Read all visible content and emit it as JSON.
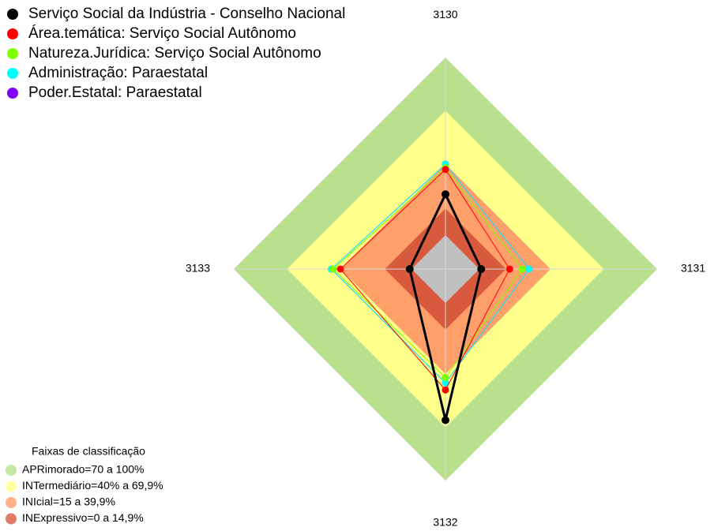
{
  "chart_data": {
    "type": "radar",
    "categories": [
      "3130",
      "3131",
      "3132",
      "3133"
    ],
    "ylim": [
      0,
      100
    ],
    "series": [
      {
        "name": "Serviço Social da Indústria - Conselho Nacional",
        "color": "#000000",
        "values": [
          23,
          1,
          66,
          1
        ]
      },
      {
        "name": "Área.temática: Serviço Social Autônomo",
        "color": "#ff0000",
        "values": [
          37,
          17,
          49,
          40
        ]
      },
      {
        "name": "Natureza.Jurídica: Serviço Social Autônomo",
        "color": "#80ff00",
        "values": [
          38,
          24,
          42,
          44
        ]
      },
      {
        "name": "Administração: Paraestatal",
        "color": "#00ffff",
        "values": [
          40,
          28,
          45,
          45
        ]
      },
      {
        "name": "Poder.Estatal: Paraestatal",
        "color": "#8000ff",
        "values": [
          40,
          28,
          45,
          45
        ]
      }
    ],
    "bands_title": "Faixas de classificação",
    "bands": [
      {
        "label": "APRimorado=70 a 100%",
        "color": "#b8e08c",
        "value": 100
      },
      {
        "label": "INTermediário=40% a 69,9%",
        "color": "#ffff8c",
        "value": 70
      },
      {
        "label": "INIcial=15 a 39,9%",
        "color": "#ff9f6a",
        "value": 40
      },
      {
        "label": "INExpressivo=0 a 14,9%",
        "color": "#d85a3e",
        "value": 15
      }
    ]
  }
}
